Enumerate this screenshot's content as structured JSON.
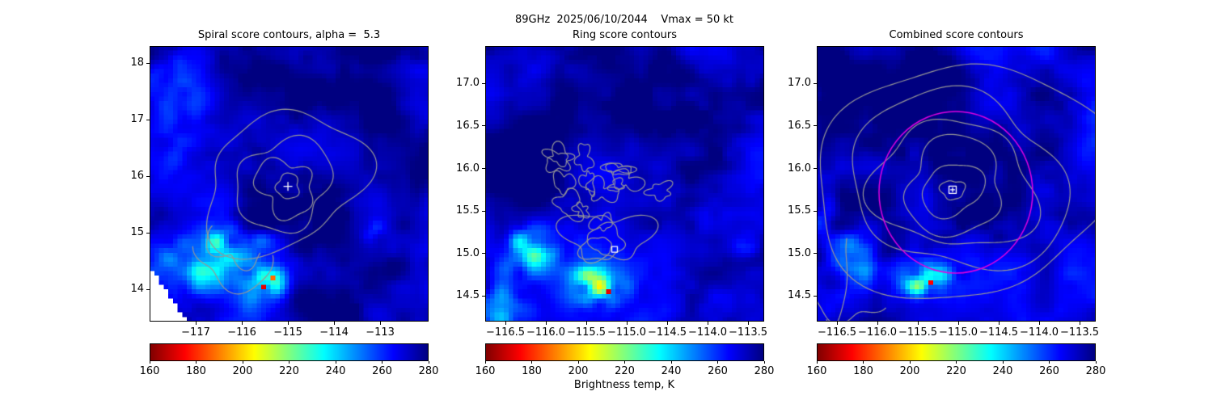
{
  "chart_data": {
    "type": "heatmap",
    "suptitle": "89GHz  2025/06/10/2044    Vmax = 50 kt",
    "colormap": "jet_r",
    "colorbar": {
      "vmin": 160,
      "vmax": 280,
      "tick_values": [
        160,
        180,
        200,
        220,
        240,
        260,
        280
      ],
      "ticks": [
        "160",
        "180",
        "200",
        "220",
        "240",
        "260",
        "280"
      ],
      "label": "Brightness temp, K"
    },
    "panels": [
      {
        "name": "spiral",
        "title": "Spiral score contours, alpha =  5.3",
        "xlim": [
          -118.0,
          -111.95
        ],
        "ylim": [
          13.43,
          18.3
        ],
        "xticks": [
          -117,
          -116,
          -115,
          -114,
          -113
        ],
        "xtick_labels": [
          "−117",
          "−116",
          "−115",
          "−114",
          "−113"
        ],
        "yticks": [
          18,
          17,
          16,
          15,
          14
        ],
        "ytick_labels": [
          "18",
          "17",
          "16",
          "15",
          "14"
        ],
        "marker": {
          "shape": "plus",
          "x": -115.0,
          "y": 15.82,
          "color": "#ffffff"
        },
        "field": {
          "seed": 41,
          "base": 271,
          "amp_up": 13,
          "amp_down": 9,
          "cool_blobs": [
            {
              "u": 0.22,
              "v": 0.8,
              "ru": 0.17,
              "rv": 0.1,
              "depth": 40
            },
            {
              "u": 0.4,
              "v": 0.855,
              "ru": 0.075,
              "rv": 0.055,
              "depth": 62
            },
            {
              "u": 0.3,
              "v": 0.7,
              "ru": 0.12,
              "rv": 0.055,
              "depth": 22
            },
            {
              "u": 0.06,
              "v": 0.1,
              "ru": 0.1,
              "rv": 0.1,
              "depth": 18
            },
            {
              "u": 0.1,
              "v": 0.32,
              "ru": 0.06,
              "rv": 0.13,
              "depth": 13
            },
            {
              "u": 0.8,
              "v": 0.67,
              "ru": 0.04,
              "rv": 0.04,
              "depth": 16
            }
          ],
          "dark_blobs": [
            {
              "u": 0.55,
              "v": 0.17,
              "ru": 0.3,
              "rv": 0.1,
              "amount": 9
            },
            {
              "u": 0.78,
              "v": 0.5,
              "ru": 0.18,
              "rv": 0.28,
              "amount": 6
            }
          ],
          "hot_pixels": [
            {
              "u": 0.405,
              "v": 0.86,
              "value": 172
            },
            {
              "u": 0.44,
              "v": 0.825,
              "value": 188
            }
          ],
          "wedge": {
            "v0": 0.8,
            "slope": 1.48
          }
        },
        "contours": {
          "color": "#969696",
          "loops": [
            {
              "cx": -115.0,
              "cy": 15.82,
              "rx": 0.26,
              "ry": 0.21,
              "wobble": 0.25,
              "seed": 101
            },
            {
              "cx": -115.05,
              "cy": 15.8,
              "rx": 0.62,
              "ry": 0.48,
              "wobble": 0.28,
              "seed": 102
            },
            {
              "cx": -115.1,
              "cy": 15.85,
              "rx": 1.05,
              "ry": 0.78,
              "wobble": 0.3,
              "seed": 103
            },
            {
              "cx": -115.1,
              "cy": 15.9,
              "rx": 1.75,
              "ry": 1.18,
              "wobble": 0.22,
              "seed": 104
            },
            {
              "cx": -116.1,
              "cy": 14.85,
              "rx": 0.55,
              "ry": 0.45,
              "wobble": 0.35,
              "seed": 105,
              "a0": 2.6,
              "a1": 5.8
            },
            {
              "cx": -116.15,
              "cy": 14.8,
              "rx": 0.9,
              "ry": 0.75,
              "wobble": 0.3,
              "seed": 106,
              "a0": 3.2,
              "a1": 6.0
            }
          ]
        }
      },
      {
        "name": "ring",
        "title": "Ring score contours",
        "xlim": [
          -116.75,
          -113.3
        ],
        "ylim": [
          14.2,
          17.44
        ],
        "xticks": [
          -116.5,
          -116.0,
          -115.5,
          -115.0,
          -114.5,
          -114.0,
          -113.5
        ],
        "xtick_labels": [
          "−116.5",
          "−116.0",
          "−115.5",
          "−115.0",
          "−114.5",
          "−114.0",
          "−113.5"
        ],
        "yticks": [
          17.0,
          16.5,
          16.0,
          15.5,
          15.0,
          14.5
        ],
        "ytick_labels": [
          "17.0",
          "16.5",
          "16.0",
          "15.5",
          "15.0",
          "14.5"
        ],
        "marker": {
          "shape": "square",
          "x": -115.15,
          "y": 15.05,
          "color": "#ffffff"
        },
        "field": {
          "seed": 42,
          "base": 271,
          "amp_up": 13,
          "amp_down": 9,
          "cool_blobs": [
            {
              "u": 0.16,
              "v": 0.74,
              "ru": 0.14,
              "rv": 0.09,
              "depth": 38
            },
            {
              "u": 0.4,
              "v": 0.86,
              "ru": 0.09,
              "rv": 0.07,
              "depth": 60
            },
            {
              "u": 0.05,
              "v": 0.95,
              "ru": 0.1,
              "rv": 0.08,
              "depth": 28
            },
            {
              "u": 0.95,
              "v": 0.72,
              "ru": 0.045,
              "rv": 0.04,
              "depth": 20
            }
          ],
          "dark_blobs": [
            {
              "u": 0.4,
              "v": 0.25,
              "ru": 0.28,
              "rv": 0.16,
              "amount": 9
            },
            {
              "u": 0.12,
              "v": 0.5,
              "ru": 0.12,
              "rv": 0.22,
              "amount": 7
            }
          ],
          "hot_pixels": [
            {
              "u": 0.425,
              "v": 0.875,
              "value": 172
            }
          ]
        },
        "contours": {
          "color": "#969696",
          "loops": [
            {
              "cx": -115.32,
              "cy": 15.1,
              "rx": 0.13,
              "ry": 0.1,
              "wobble": 0.4,
              "seed": 201
            },
            {
              "cx": -115.3,
              "cy": 15.12,
              "rx": 0.26,
              "ry": 0.2,
              "wobble": 0.45,
              "seed": 202
            },
            {
              "cx": -115.25,
              "cy": 15.2,
              "rx": 0.42,
              "ry": 0.34,
              "wobble": 0.5,
              "seed": 203
            }
          ],
          "random_loops": {
            "count": 14,
            "seed": 204,
            "x0": -115.95,
            "x1": -114.55,
            "y0": 15.35,
            "y1": 16.35,
            "rmin": 0.05,
            "rmax": 0.18,
            "wobble": 0.55
          }
        }
      },
      {
        "name": "combined",
        "title": "Combined score contours",
        "xlim": [
          -116.75,
          -113.3
        ],
        "ylim": [
          14.2,
          17.44
        ],
        "xticks": [
          -116.5,
          -116.0,
          -115.5,
          -115.0,
          -114.5,
          -114.0,
          -113.5
        ],
        "xtick_labels": [
          "−116.5",
          "−116.0",
          "−115.5",
          "−115.0",
          "−114.5",
          "−114.0",
          "−113.5"
        ],
        "yticks": [
          17.0,
          16.5,
          16.0,
          15.5,
          15.0,
          14.5
        ],
        "ytick_labels": [
          "17.0",
          "16.5",
          "16.0",
          "15.5",
          "15.0",
          "14.5"
        ],
        "marker": {
          "shape": "square-plus",
          "x": -115.07,
          "y": 15.75,
          "color": "#ffffff"
        },
        "circle": {
          "cx": -115.03,
          "cy": 15.72,
          "r": 0.95,
          "color": "#e000e0"
        },
        "field": {
          "seed": 43,
          "base": 271,
          "amp_up": 13,
          "amp_down": 9,
          "cool_blobs": [
            {
              "u": 0.13,
              "v": 0.77,
              "ru": 0.13,
              "rv": 0.1,
              "depth": 36
            },
            {
              "u": 0.38,
              "v": 0.845,
              "ru": 0.085,
              "rv": 0.065,
              "depth": 60
            },
            {
              "u": 0.03,
              "v": 0.6,
              "ru": 0.05,
              "rv": 0.12,
              "depth": 18
            }
          ],
          "dark_blobs": [
            {
              "u": 0.3,
              "v": 0.12,
              "ru": 0.3,
              "rv": 0.12,
              "amount": 9
            },
            {
              "u": 0.06,
              "v": 0.28,
              "ru": 0.1,
              "rv": 0.15,
              "amount": 7
            }
          ],
          "hot_pixels": [
            {
              "u": 0.4,
              "v": 0.85,
              "value": 175
            }
          ]
        },
        "contours": {
          "color": "#969696",
          "loops": [
            {
              "cx": -115.07,
              "cy": 15.75,
              "rx": 0.14,
              "ry": 0.12,
              "wobble": 0.2,
              "seed": 301
            },
            {
              "cx": -115.07,
              "cy": 15.75,
              "rx": 0.38,
              "ry": 0.3,
              "wobble": 0.22,
              "seed": 302
            },
            {
              "cx": -115.05,
              "cy": 15.78,
              "rx": 0.65,
              "ry": 0.52,
              "wobble": 0.22,
              "seed": 303
            },
            {
              "cx": -115.05,
              "cy": 15.8,
              "rx": 0.95,
              "ry": 0.78,
              "wobble": 0.2,
              "seed": 304
            },
            {
              "cx": -115.0,
              "cy": 15.85,
              "rx": 1.3,
              "ry": 1.05,
              "wobble": 0.18,
              "seed": 305
            },
            {
              "cx": -114.95,
              "cy": 15.85,
              "rx": 1.75,
              "ry": 1.45,
              "wobble": 0.15,
              "seed": 306
            },
            {
              "cx": -116.35,
              "cy": 14.8,
              "rx": 0.5,
              "ry": 0.6,
              "wobble": 0.3,
              "seed": 307,
              "a0": 3.0,
              "a1": 5.6
            },
            {
              "cx": -116.55,
              "cy": 15.0,
              "rx": 0.22,
              "ry": 0.7,
              "wobble": 0.25,
              "seed": 308,
              "a0": 4.4,
              "a1": 6.6
            }
          ]
        }
      }
    ]
  }
}
